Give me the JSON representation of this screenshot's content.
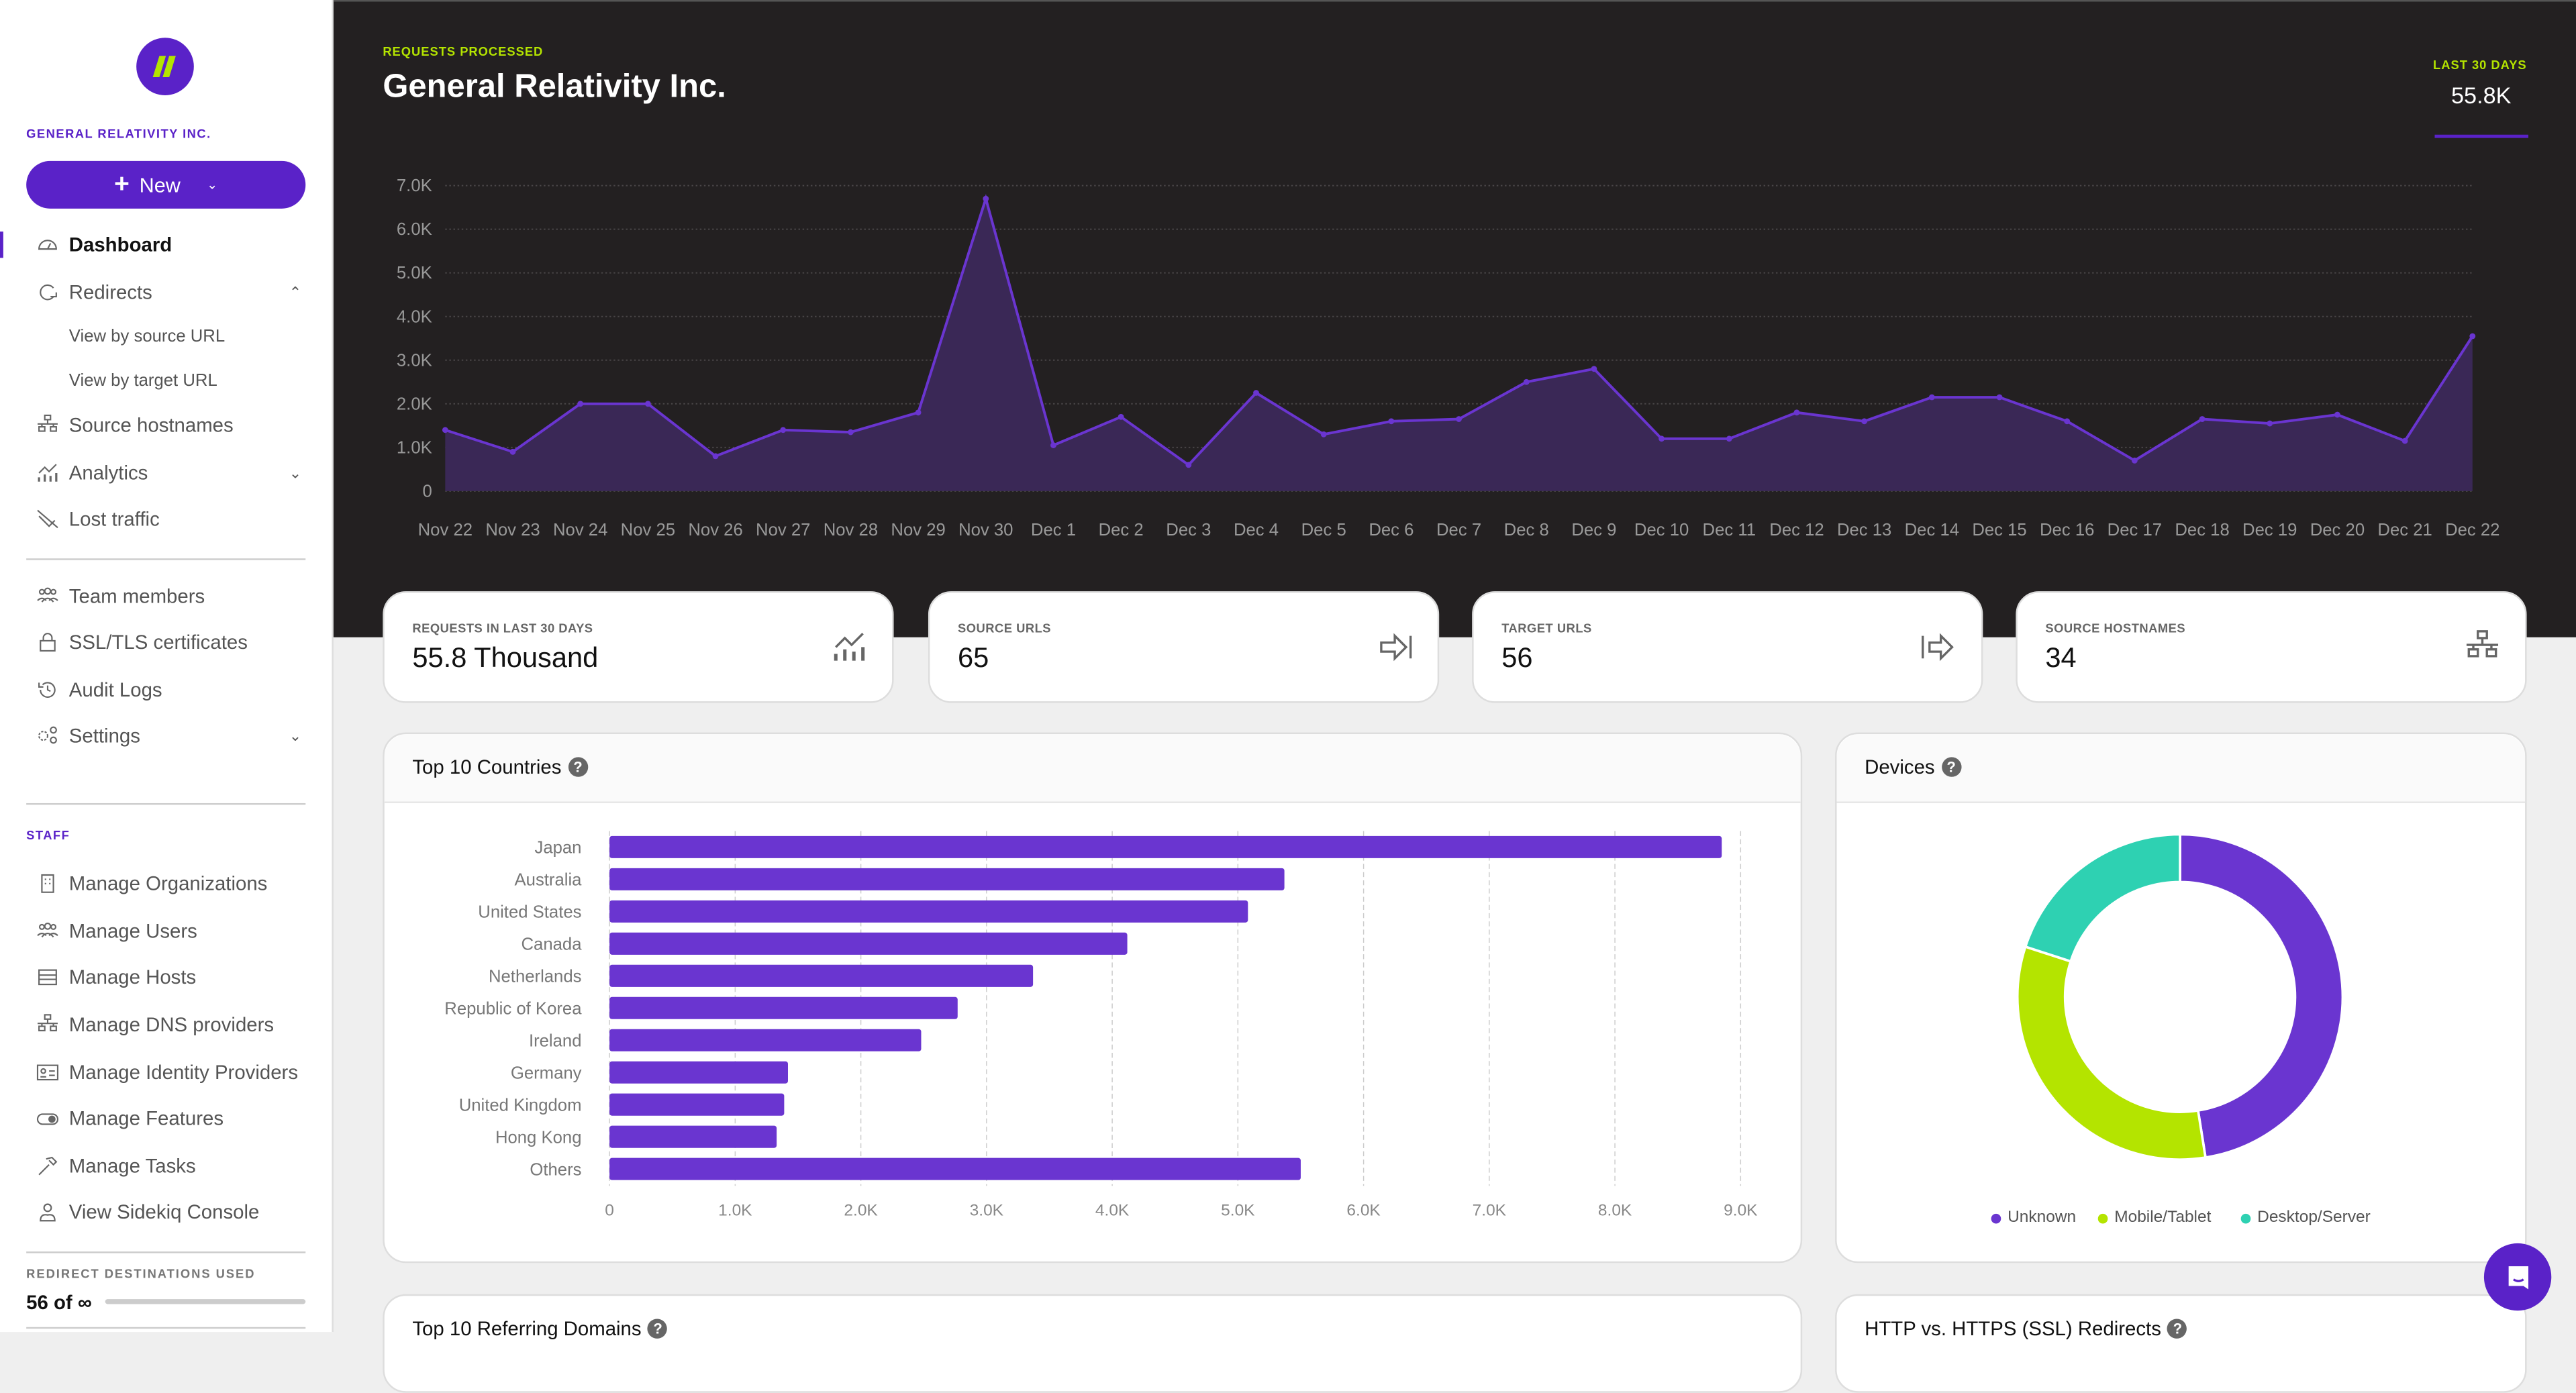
{
  "sidebar": {
    "org_name": "GENERAL RELATIVITY INC.",
    "new_button": "New",
    "items": [
      {
        "label": "Dashboard",
        "icon": "gauge-icon",
        "active": true
      },
      {
        "label": "Redirects",
        "icon": "redirect-icon",
        "expanded": true
      },
      {
        "label": "View by source URL",
        "sub": true
      },
      {
        "label": "View by target URL",
        "sub": true
      },
      {
        "label": "Source hostnames",
        "icon": "sitemap-icon"
      },
      {
        "label": "Analytics",
        "icon": "analytics-icon",
        "expandable": true
      },
      {
        "label": "Lost traffic",
        "icon": "lost-traffic-icon"
      },
      {
        "label": "Team members",
        "icon": "users-icon"
      },
      {
        "label": "SSL/TLS certificates",
        "icon": "lock-icon"
      },
      {
        "label": "Audit Logs",
        "icon": "history-icon"
      },
      {
        "label": "Settings",
        "icon": "gears-icon",
        "expandable": true
      }
    ],
    "staff_heading": "STAFF",
    "staff_items": [
      {
        "label": "Manage Organizations",
        "icon": "building-icon"
      },
      {
        "label": "Manage Users",
        "icon": "users-icon"
      },
      {
        "label": "Manage Hosts",
        "icon": "server-icon"
      },
      {
        "label": "Manage DNS providers",
        "icon": "sitemap-icon"
      },
      {
        "label": "Manage Identity Providers",
        "icon": "id-card-icon"
      },
      {
        "label": "Manage Features",
        "icon": "toggle-icon"
      },
      {
        "label": "Manage Tasks",
        "icon": "hammer-icon"
      },
      {
        "label": "View Sidekiq Console",
        "icon": "sidekiq-icon"
      }
    ],
    "usage_label": "REDIRECT DESTINATIONS USED",
    "usage_value": "56 of ∞"
  },
  "header": {
    "kicker": "REQUESTS PROCESSED",
    "title": "General Relativity Inc.",
    "period_label": "LAST 30 DAYS",
    "period_value": "55.8K"
  },
  "stats": [
    {
      "label": "REQUESTS IN LAST 30 DAYS",
      "value": "55.8 Thousand",
      "icon": "analytics-icon"
    },
    {
      "label": "SOURCE URLS",
      "value": "65",
      "icon": "arrow-to-bar-icon"
    },
    {
      "label": "TARGET URLS",
      "value": "56",
      "icon": "arrow-from-bar-icon"
    },
    {
      "label": "SOURCE HOSTNAMES",
      "value": "34",
      "icon": "sitemap-icon"
    }
  ],
  "panels": {
    "countries_title": "Top 10 Countries",
    "devices_title": "Devices",
    "referring_title": "Top 10 Referring Domains",
    "ssl_title": "HTTP vs. HTTPS (SSL) Redirects",
    "help": "?"
  },
  "colors": {
    "accent": "#5a22c8",
    "lime": "#b4e400",
    "teal": "#2ed1b2",
    "bar": "#6a35d0"
  },
  "chart_data": [
    {
      "type": "area",
      "ylim": [
        0,
        7000
      ],
      "grid": true,
      "yticks": [
        "0",
        "1.0K",
        "2.0K",
        "3.0K",
        "4.0K",
        "5.0K",
        "6.0K",
        "7.0K"
      ],
      "categories": [
        "Nov 22",
        "Nov 23",
        "Nov 24",
        "Nov 25",
        "Nov 26",
        "Nov 27",
        "Nov 28",
        "Nov 29",
        "Nov 30",
        "Dec 1",
        "Dec 2",
        "Dec 3",
        "Dec 4",
        "Dec 5",
        "Dec 6",
        "Dec 7",
        "Dec 8",
        "Dec 9",
        "Dec 10",
        "Dec 11",
        "Dec 12",
        "Dec 13",
        "Dec 14",
        "Dec 15",
        "Dec 16",
        "Dec 17",
        "Dec 18",
        "Dec 19",
        "Dec 20",
        "Dec 21",
        "Dec 22"
      ],
      "values": [
        1400,
        900,
        2000,
        2000,
        800,
        1400,
        1350,
        1800,
        6700,
        1050,
        1700,
        600,
        2250,
        1300,
        1600,
        1650,
        2500,
        2800,
        1200,
        1200,
        1800,
        1600,
        2150,
        2150,
        1600,
        700,
        1650,
        1550,
        1750,
        1150,
        3550
      ]
    },
    {
      "type": "bar",
      "orientation": "horizontal",
      "xlim": [
        0,
        9000
      ],
      "grid": true,
      "xticks": [
        "0",
        "1.0K",
        "2.0K",
        "3.0K",
        "4.0K",
        "5.0K",
        "6.0K",
        "7.0K",
        "8.0K",
        "9.0K"
      ],
      "categories": [
        "Japan",
        "Australia",
        "United States",
        "Canada",
        "Netherlands",
        "Republic of Korea",
        "Ireland",
        "Germany",
        "United Kingdom",
        "Hong Kong",
        "Others"
      ],
      "values": [
        8850,
        5370,
        5080,
        4120,
        3370,
        2770,
        2480,
        1420,
        1390,
        1330,
        5500
      ]
    },
    {
      "type": "pie",
      "donut": true,
      "legend": "bottom",
      "labels": [
        "Unknown",
        "Mobile/Tablet",
        "Desktop/Server"
      ],
      "values": [
        47.5,
        32.5,
        20
      ],
      "colors": [
        "#6a35d0",
        "#b4e400",
        "#2ed1b2"
      ]
    }
  ]
}
